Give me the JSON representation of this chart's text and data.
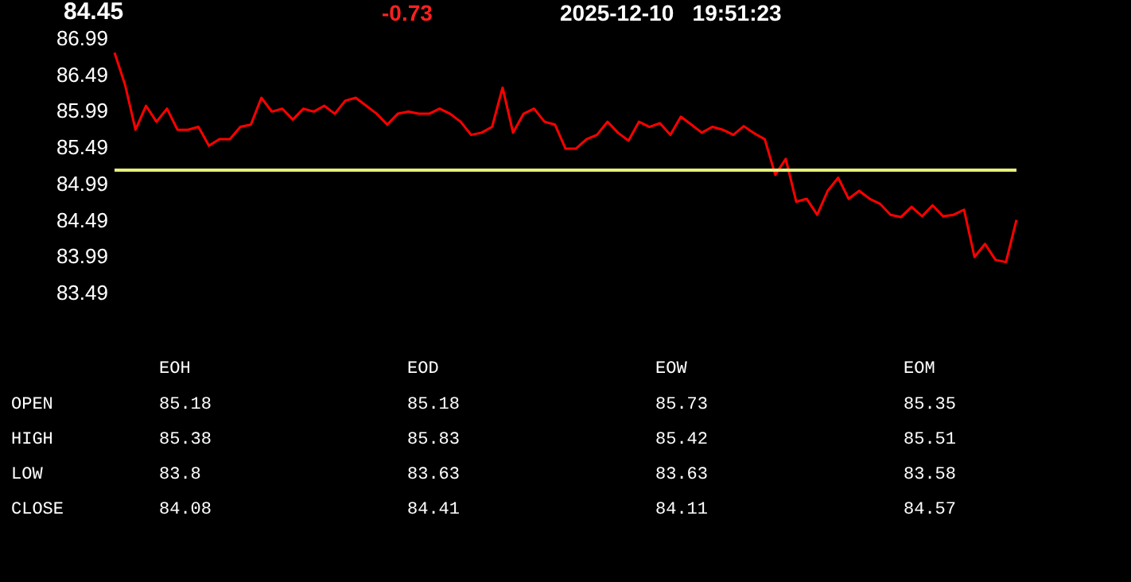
{
  "chart_data": [
    {
      "type": "line",
      "title": "84.45",
      "annotations": [
        "-0.73",
        "2025-12-10   19:51:23"
      ],
      "categories": [
        null,
        null,
        null,
        null,
        null,
        null,
        null,
        null,
        null,
        null,
        null,
        null,
        null,
        null,
        null,
        null,
        null,
        null,
        null,
        null,
        null,
        null,
        null,
        null,
        null,
        null,
        null,
        null,
        null,
        null,
        null,
        null,
        null,
        null,
        null,
        null,
        null,
        null,
        null,
        null,
        null,
        null,
        null,
        null,
        null,
        null,
        null,
        null,
        null,
        null,
        null,
        null,
        null,
        null,
        null,
        null,
        null,
        null,
        null,
        null,
        null,
        null,
        null,
        null,
        null,
        null,
        null,
        null,
        null,
        null,
        null,
        null,
        null,
        null,
        null,
        null,
        null,
        null,
        null,
        null,
        null,
        null,
        null,
        null,
        null,
        null,
        null
      ],
      "series": [
        {
          "color": "#ff0000",
          "values": [
            86.79,
            86.35,
            85.73,
            86.06,
            85.84,
            86.02,
            85.73,
            85.73,
            85.77,
            85.51,
            85.6,
            85.6,
            85.77,
            85.8,
            86.17,
            85.98,
            86.02,
            85.87,
            86.02,
            85.98,
            86.06,
            85.95,
            86.13,
            86.17,
            86.06,
            85.95,
            85.8,
            85.95,
            85.98,
            85.95,
            85.95,
            86.02,
            85.95,
            85.84,
            85.66,
            85.69,
            85.77,
            86.31,
            85.69,
            85.95,
            86.02,
            85.84,
            85.8,
            85.47,
            85.47,
            85.6,
            85.66,
            85.84,
            85.69,
            85.58,
            85.84,
            85.77,
            85.82,
            85.66,
            85.91,
            85.8,
            85.69,
            85.77,
            85.73,
            85.66,
            85.78,
            85.68,
            85.6,
            85.11,
            85.33,
            84.74,
            84.78,
            84.56,
            84.89,
            85.07,
            84.78,
            84.89,
            84.78,
            84.71,
            84.56,
            84.53,
            84.67,
            84.54,
            84.69,
            84.54,
            84.56,
            84.63,
            83.98,
            84.16,
            83.94,
            83.91,
            84.49
          ]
        }
      ],
      "ylim": [
        83.49,
        86.99
      ],
      "yticks": [
        83.49,
        83.99,
        84.49,
        84.99,
        85.49,
        85.99,
        86.49,
        86.99
      ],
      "grid": false,
      "tick_labels": "y",
      "line_style": "solid",
      "ref_lines": [
        {
          "axis": "y",
          "value": 85.18,
          "color": "#e6f07a",
          "line_style": "solid"
        }
      ]
    },
    {
      "type": "heatmap",
      "categories": [
        "EOH",
        "EOD",
        "EOW",
        "EOM"
      ],
      "y_categories": [
        "OPEN",
        "HIGH",
        "LOW",
        "CLOSE"
      ],
      "cells": [
        [
          85.18,
          85.18,
          85.73,
          85.35
        ],
        [
          85.38,
          85.83,
          85.42,
          85.51
        ],
        [
          83.8,
          83.63,
          83.63,
          83.58
        ],
        [
          84.08,
          84.41,
          84.11,
          84.57
        ]
      ],
      "data_labels": true
    }
  ]
}
